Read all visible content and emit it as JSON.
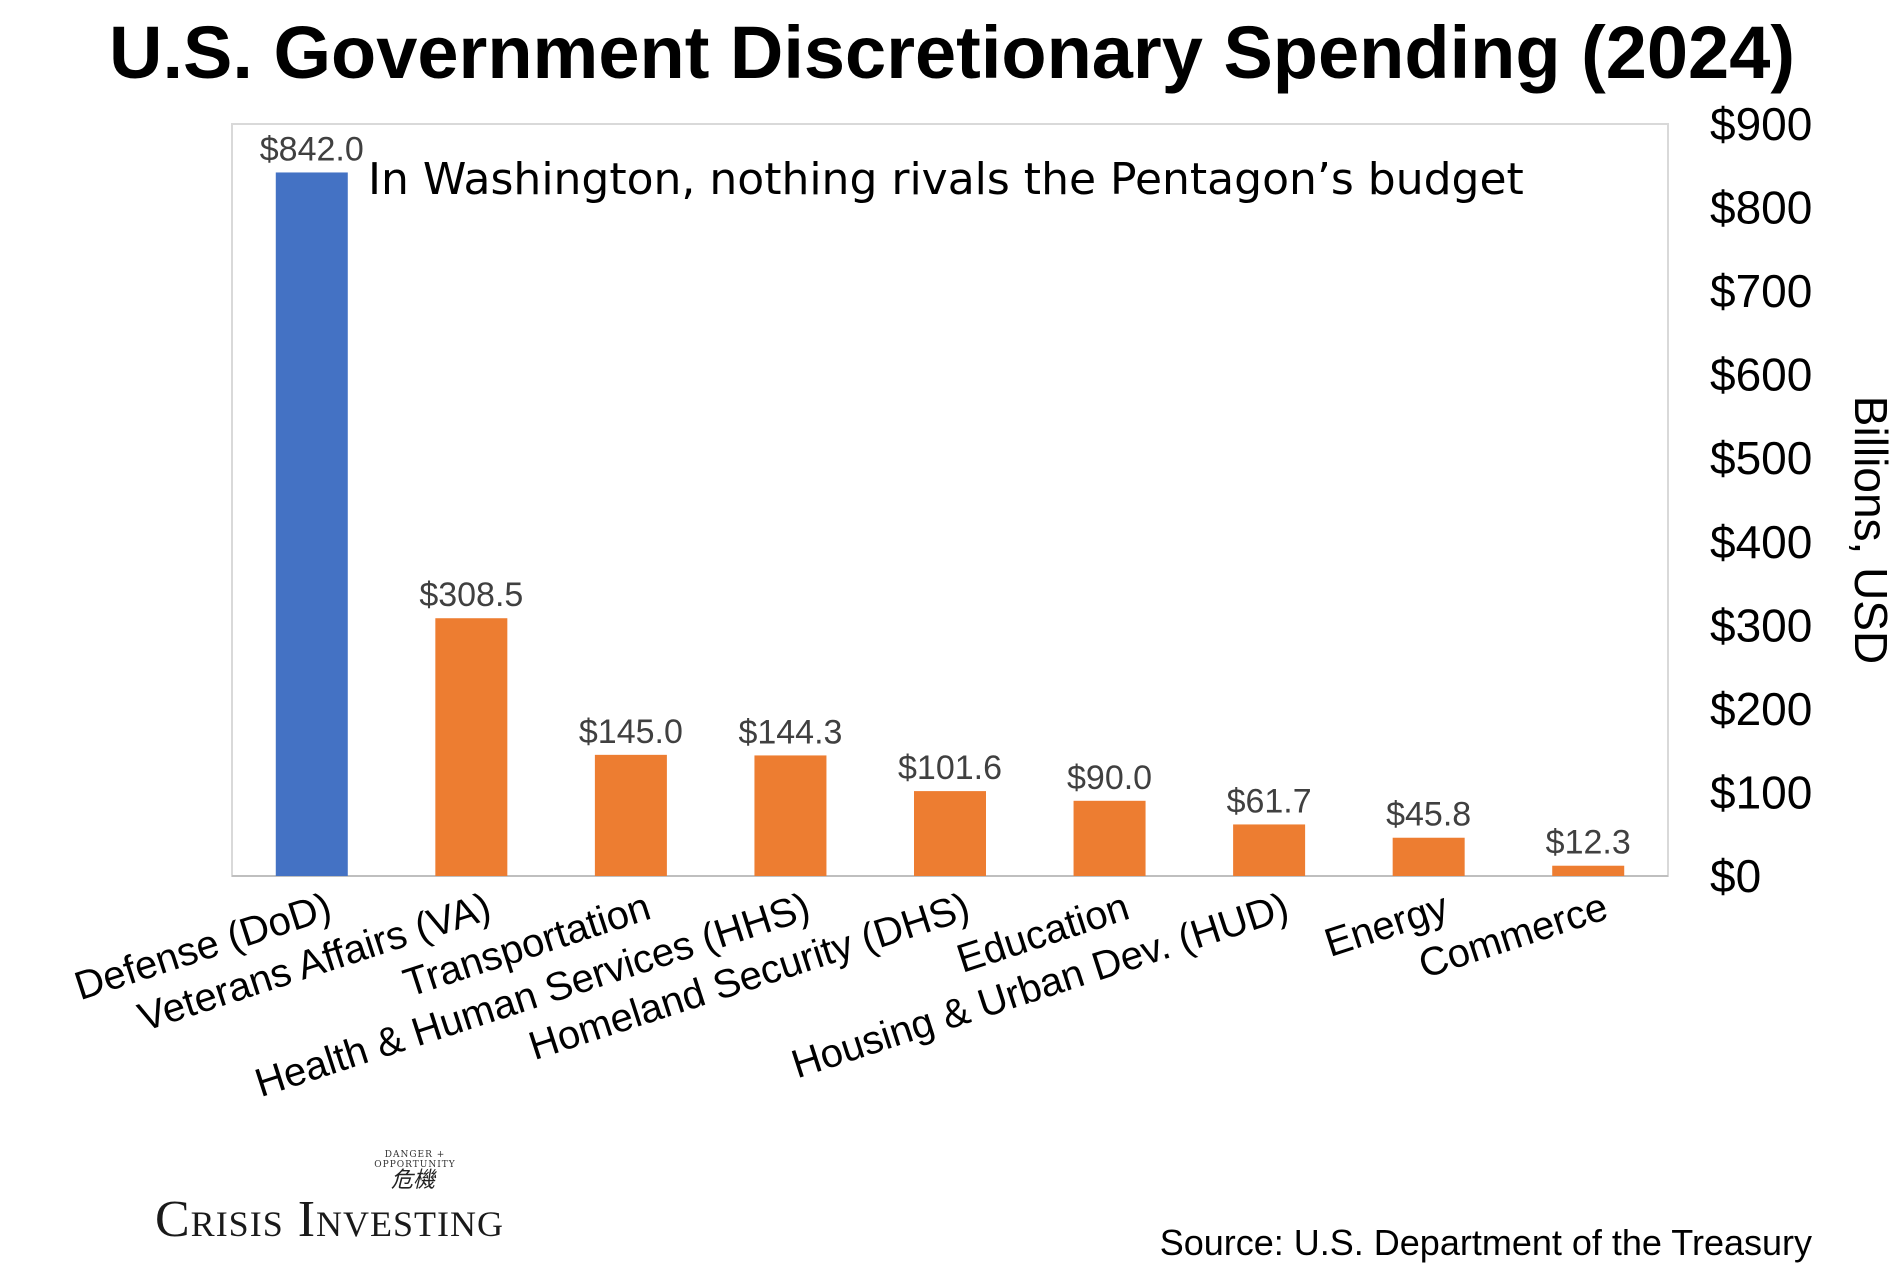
{
  "title": "U.S. Government Discretionary Spending (2024)",
  "annotation": "In Washington, nothing rivals the Pentagon’s budget",
  "source": "Source: U.S. Department of the Treasury",
  "logo": {
    "tagline": "DANGER + OPPORTUNITY",
    "glyph": "危機",
    "text": "Crisis Investing"
  },
  "colors": {
    "highlight": "#4472C4",
    "bar": "#ED7D31",
    "value_label": "#404040",
    "plot_border": "#D9D9D9"
  },
  "chart_data": {
    "type": "bar",
    "title": "U.S. Government Discretionary Spending (2024)",
    "ylabel": "Billions, USD",
    "xlabel": "",
    "y_axis_side": "right",
    "ylim": [
      0,
      900
    ],
    "yticks": [
      0,
      100,
      200,
      300,
      400,
      500,
      600,
      700,
      800,
      900
    ],
    "ytick_labels": [
      "$0",
      "$100",
      "$200",
      "$300",
      "$400",
      "$500",
      "$600",
      "$700",
      "$800",
      "$900"
    ],
    "grid": false,
    "categories": [
      "Defense (DoD)",
      "Veterans Affairs (VA)",
      "Transportation",
      "Health & Human Services (HHS)",
      "Homeland Security (DHS)",
      "Education",
      "Housing & Urban Dev. (HUD)",
      "Energy",
      "Commerce"
    ],
    "values": [
      842.0,
      308.5,
      145.0,
      144.3,
      101.6,
      90.0,
      61.7,
      45.8,
      12.3
    ],
    "value_labels": [
      "$842.0",
      "$308.5",
      "$145.0",
      "$144.3",
      "$101.6",
      "$90.0",
      "$61.7",
      "$45.8",
      "$12.3"
    ],
    "highlight_index": 0
  }
}
